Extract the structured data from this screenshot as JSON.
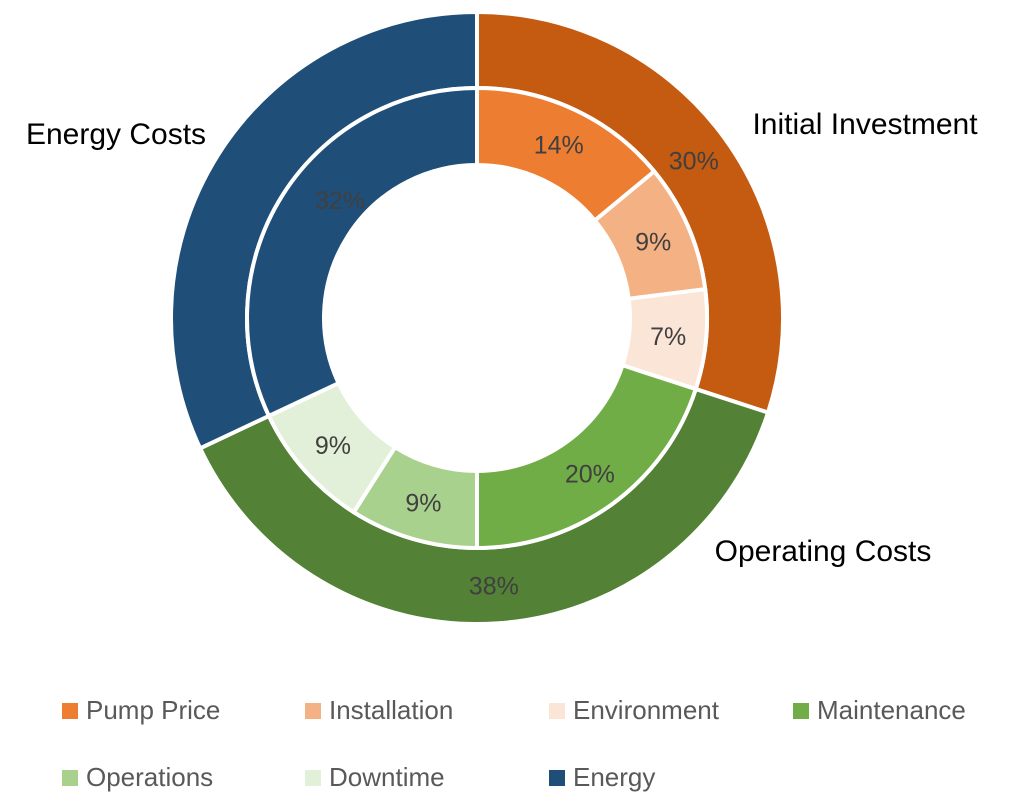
{
  "chart_data": {
    "type": "donut",
    "inner_ring": {
      "categories": [
        "Pump Price",
        "Installation",
        "Environment",
        "Maintenance",
        "Operations",
        "Downtime",
        "Energy"
      ],
      "values": [
        14,
        9,
        7,
        20,
        9,
        9,
        32
      ],
      "labels": [
        "14%",
        "9%",
        "7%",
        "20%",
        "9%",
        "9%",
        "32%"
      ],
      "colors": [
        "#ED7D31",
        "#F4B183",
        "#FBE5D6",
        "#70AD47",
        "#A9D18E",
        "#E2F0D9",
        "#1F4E79"
      ]
    },
    "outer_ring": {
      "categories": [
        "Initial Investment",
        "Operating Costs",
        "Energy Costs"
      ],
      "values": [
        30,
        38,
        32
      ],
      "labels": [
        "30%",
        "38%",
        ""
      ],
      "colors": [
        "#C55A11",
        "#538135",
        "#1F4E79"
      ]
    },
    "legend_position": "bottom"
  }
}
